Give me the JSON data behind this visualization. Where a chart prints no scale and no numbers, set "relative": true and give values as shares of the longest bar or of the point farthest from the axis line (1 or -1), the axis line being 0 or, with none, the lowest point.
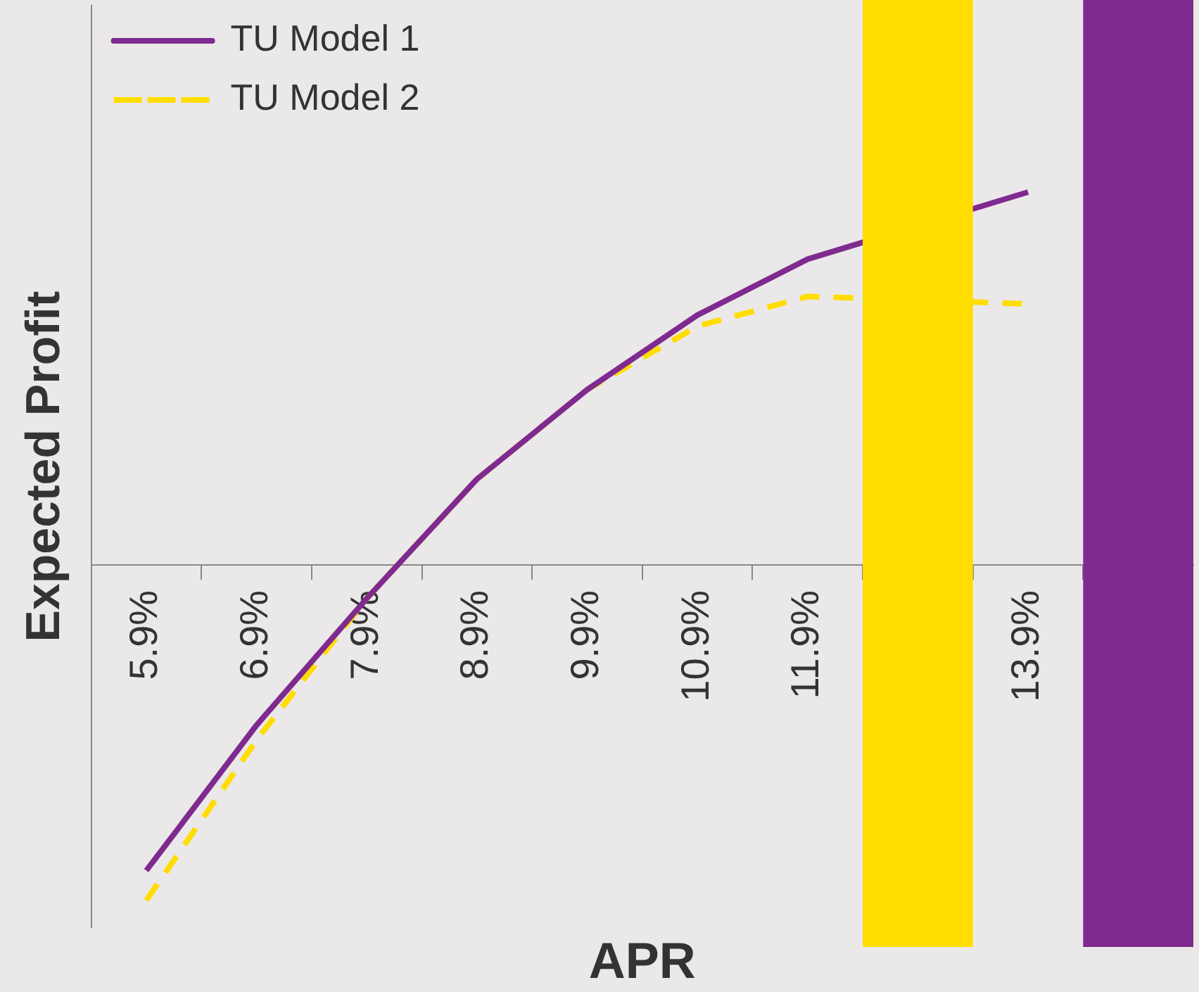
{
  "chart_data": {
    "type": "line",
    "relative": true,
    "xlabel": "APR",
    "ylabel": "Expected Profit",
    "x": [
      5.9,
      6.9,
      7.9,
      8.9,
      9.9,
      10.9,
      11.9,
      12.9,
      13.9
    ],
    "xlim": [
      5.4,
      15.4
    ],
    "xticks": [
      {
        "value": 5.9,
        "label": "5.9%"
      },
      {
        "value": 6.9,
        "label": "6.9%"
      },
      {
        "value": 7.9,
        "label": "7.9%"
      },
      {
        "value": 8.9,
        "label": "8.9%"
      },
      {
        "value": 9.9,
        "label": "9.9%"
      },
      {
        "value": 10.9,
        "label": "10.9%"
      },
      {
        "value": 11.9,
        "label": "11.9%"
      },
      {
        "value": 13.9,
        "label": "13.9%"
      },
      {
        "value": 6.4,
        "label": null
      },
      {
        "value": 7.4,
        "label": null
      },
      {
        "value": 8.4,
        "label": null
      },
      {
        "value": 9.4,
        "label": null
      },
      {
        "value": 10.4,
        "label": null
      },
      {
        "value": 11.4,
        "label": null
      },
      {
        "value": 12.4,
        "label": null
      },
      {
        "value": 13.4,
        "label": null
      },
      {
        "value": 14.4,
        "label": null
      }
    ],
    "series": [
      {
        "name": "TU Model 1",
        "color": "#7f2a8f",
        "line_style": "solid",
        "values": [
          -0.82,
          -0.43,
          -0.09,
          0.23,
          0.47,
          0.67,
          0.82,
          null,
          1
        ]
      },
      {
        "name": "TU Model 2",
        "color": "#ffdd00",
        "line_style": "dashed",
        "values": [
          -0.9,
          -0.47,
          -0.09,
          0.23,
          0.47,
          0.64,
          0.72,
          null,
          0.7
        ]
      }
    ],
    "bands": [
      {
        "axis": "x",
        "from": 12.4,
        "to": 13.4,
        "color": "#ffdd00"
      },
      {
        "axis": "x",
        "from": 14.4,
        "to": 15.4,
        "color": "#7f2a8f"
      }
    ],
    "legend": "top left",
    "marker": "none"
  }
}
